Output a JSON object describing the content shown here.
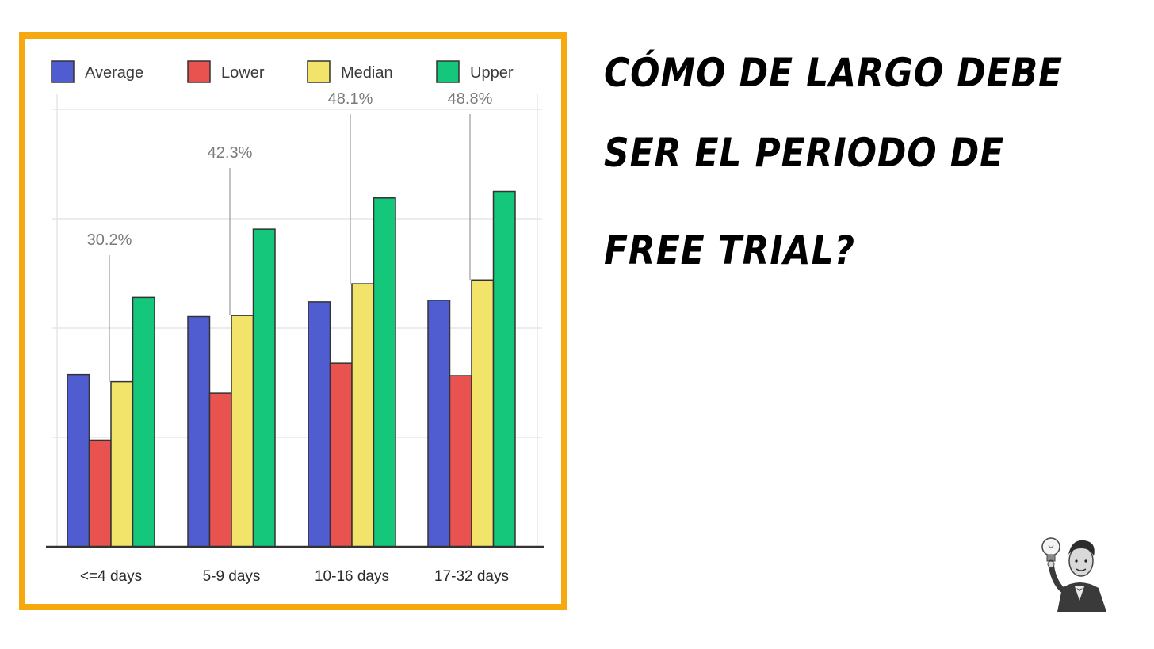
{
  "title": {
    "line1": "CÓMO DE LARGO DEBE",
    "line2": "SER EL PERIODO DE",
    "line3": "FREE TRIAL?"
  },
  "chart_data": {
    "type": "bar",
    "categories": [
      "<=4 days",
      "5-9 days",
      "10-16 days",
      "17-32 days"
    ],
    "series": [
      {
        "name": "Average",
        "color": "#4f5dd1",
        "values": [
          31.5,
          42.1,
          44.8,
          45.1
        ]
      },
      {
        "name": "Lower",
        "color": "#e8524f",
        "values": [
          19.5,
          28.1,
          33.6,
          31.3
        ]
      },
      {
        "name": "Median",
        "color": "#f2e46a",
        "values": [
          30.2,
          42.3,
          48.1,
          48.8
        ]
      },
      {
        "name": "Upper",
        "color": "#14c77b",
        "values": [
          45.6,
          58.1,
          63.8,
          65.0
        ]
      }
    ],
    "annotations": [
      {
        "category": "<=4 days",
        "series": "Median",
        "text": "30.2%"
      },
      {
        "category": "5-9 days",
        "series": "Median",
        "text": "42.3%"
      },
      {
        "category": "10-16 days",
        "series": "Median",
        "text": "48.1%"
      },
      {
        "category": "17-32 days",
        "series": "Median",
        "text": "48.8%"
      }
    ],
    "ylim": [
      0,
      80
    ],
    "grid": true,
    "legend": "top",
    "xlabel": "",
    "ylabel": ""
  },
  "colors": {
    "frame": "#f5a90f",
    "grid": "#e6e6e6",
    "axis": "#333333"
  },
  "icons": {
    "avatar": "inventor-with-lightbulb-illustration"
  }
}
